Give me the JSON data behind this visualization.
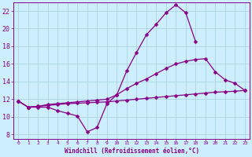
{
  "xlabel": "Windchill (Refroidissement éolien,°C)",
  "x_values": [
    0,
    1,
    2,
    3,
    4,
    5,
    6,
    7,
    8,
    9,
    10,
    11,
    12,
    13,
    14,
    15,
    16,
    17,
    18,
    19,
    20,
    21,
    22,
    23
  ],
  "line1": [
    11.8,
    11.1,
    11.1,
    11.1,
    10.7,
    10.4,
    10.1,
    8.3,
    8.8,
    11.5,
    12.5,
    15.2,
    17.3,
    19.3,
    20.5,
    21.8,
    22.7,
    21.8,
    18.5,
    null,
    null,
    null,
    null,
    null
  ],
  "line2": [
    11.8,
    11.1,
    11.2,
    11.4,
    11.5,
    11.6,
    11.7,
    11.8,
    11.9,
    12.0,
    12.5,
    13.2,
    13.8,
    14.3,
    14.9,
    15.5,
    16.0,
    16.3,
    16.5,
    16.6,
    15.1,
    14.2,
    13.8,
    13.0
  ],
  "line3": [
    11.8,
    11.1,
    11.2,
    11.3,
    11.4,
    11.5,
    11.55,
    11.6,
    11.65,
    11.7,
    11.8,
    11.9,
    12.0,
    12.1,
    12.2,
    12.3,
    12.4,
    12.5,
    12.6,
    12.7,
    12.8,
    12.85,
    12.9,
    13.0
  ],
  "bg_color": "#cceeff",
  "grid_color": "#aad4dd",
  "line_color": "#880088",
  "ylim": [
    7.5,
    23.0
  ],
  "xlim": [
    -0.5,
    23.5
  ],
  "yticks": [
    8,
    10,
    12,
    14,
    16,
    18,
    20,
    22
  ],
  "xtick_labels": [
    "0",
    "1",
    "2",
    "3",
    "4",
    "5",
    "6",
    "7",
    "8",
    "9",
    "10",
    "11",
    "12",
    "13",
    "14",
    "15",
    "16",
    "17",
    "18",
    "19",
    "20",
    "21",
    "22",
    "23"
  ]
}
